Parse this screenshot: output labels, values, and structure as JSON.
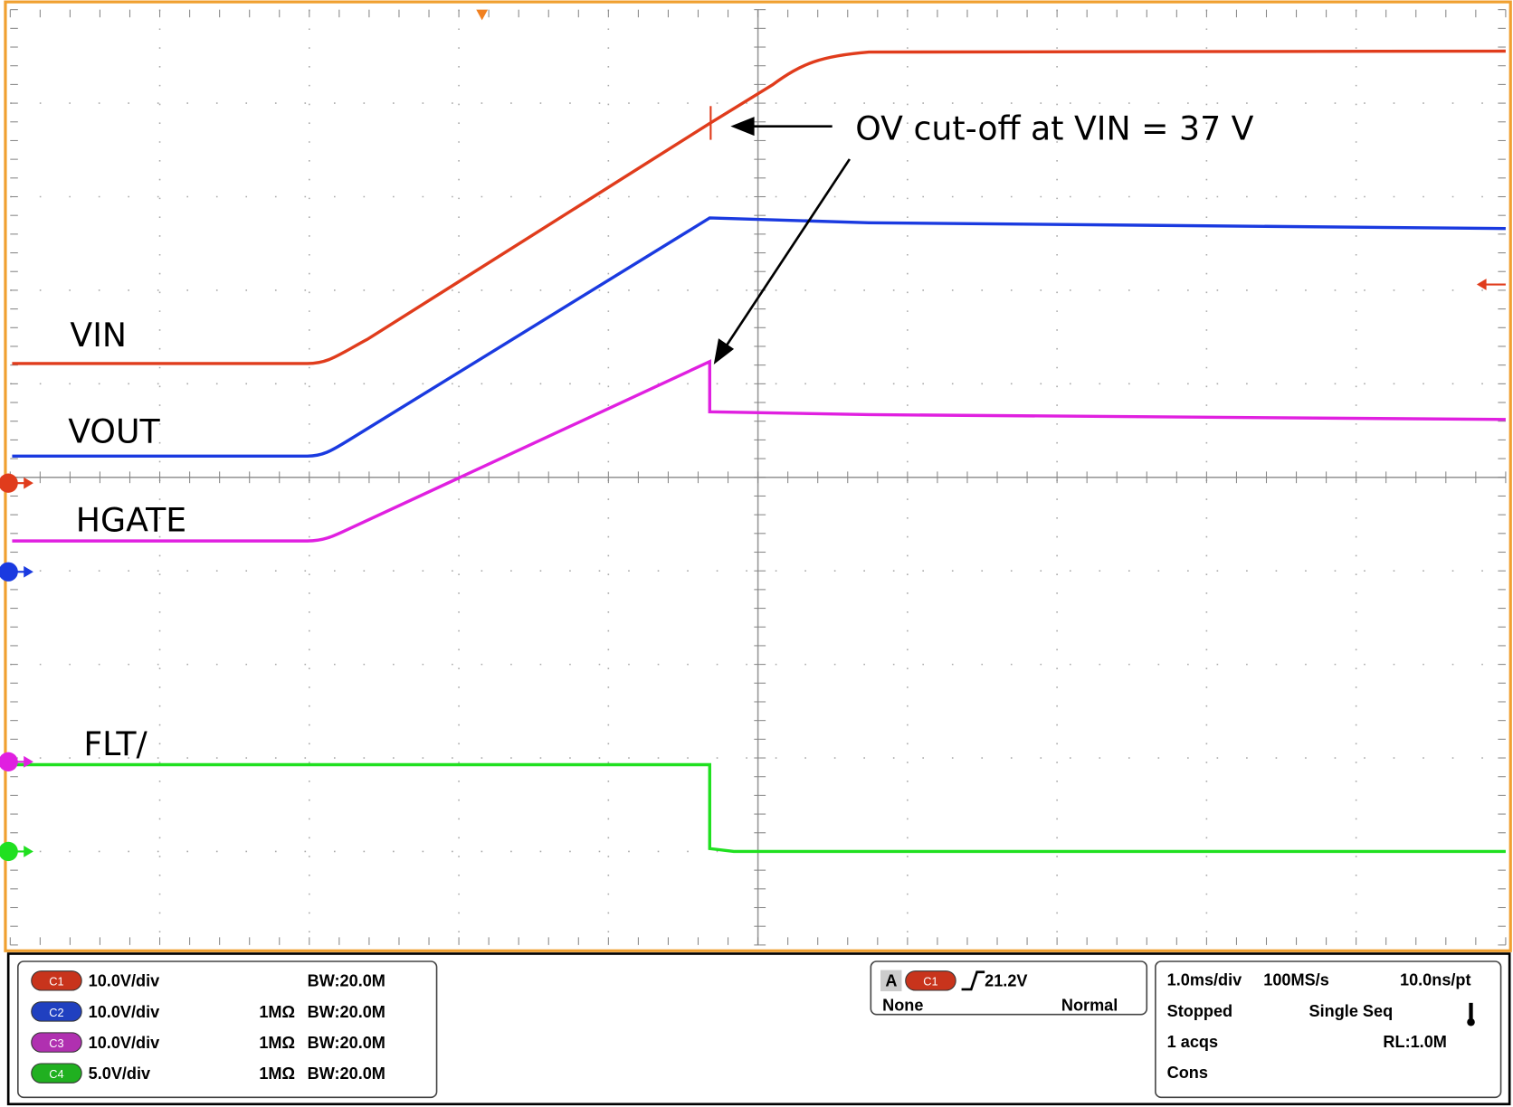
{
  "waveform_labels": [
    "VIN",
    "VOUT",
    "HGATE",
    "FLT/"
  ],
  "annotation": "OV cut-off at VIN = 37 V",
  "channels": [
    {
      "badge": "C1",
      "scale": "10.0V/div",
      "bandwidth": "BW:20.0M"
    },
    {
      "badge": "C2",
      "scale": "10.0V/div",
      "impedance": "1MΩ",
      "bandwidth": "BW:20.0M"
    },
    {
      "badge": "C3",
      "scale": "10.0V/div",
      "impedance": "1MΩ",
      "bandwidth": "BW:20.0M"
    },
    {
      "badge": "C4",
      "scale": "5.0V/div",
      "impedance": "1MΩ",
      "bandwidth": "BW:20.0M"
    }
  ],
  "trigger": {
    "mode_label": "A",
    "source": "C1",
    "level": "21.2V",
    "coupling": "None",
    "mode": "Normal"
  },
  "timebase": {
    "rows": [
      [
        "1.0ms/div",
        "100MS/s",
        "10.0ns/pt"
      ],
      [
        "Stopped",
        "Single Seq"
      ],
      [
        "1 acqs",
        "RL:1.0M"
      ],
      [
        "Cons"
      ]
    ]
  }
}
